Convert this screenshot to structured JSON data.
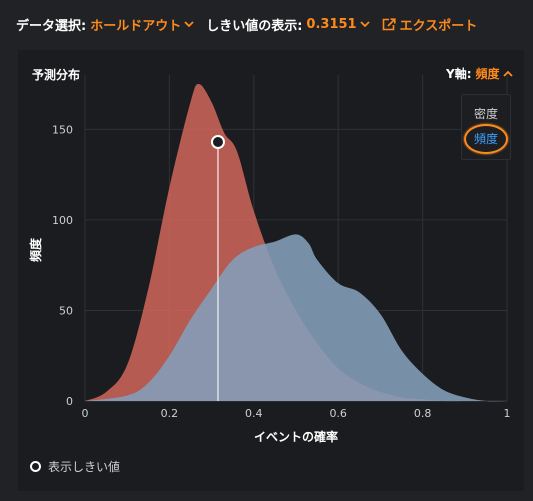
{
  "toolbar": {
    "data_selection_label": "データ選択:",
    "data_selection_value": "ホールドアウト",
    "threshold_label": "しきい値の表示:",
    "threshold_value": "0.3151",
    "export_label": "エクスポート"
  },
  "panel": {
    "title": "予測分布",
    "yaxis_label": "Y軸:",
    "yaxis_value": "頻度",
    "dropdown_options": [
      "密度",
      "頻度"
    ],
    "selected_option": "頻度"
  },
  "legend": {
    "threshold_label": "表示しきい値"
  },
  "colors": {
    "accent": "#ff8a1c",
    "selected": "#3fa0ff",
    "negative_class": "#d2665c",
    "positive_class": "#9aa8c2",
    "positive_edge": "#5e8eaa"
  },
  "chart_data": {
    "type": "area",
    "title": "",
    "xlabel": "イベントの確率",
    "ylabel": "頻度",
    "xlim": [
      0,
      1
    ],
    "ylim": [
      0,
      180
    ],
    "x_ticks": [
      "0",
      "0.2",
      "0.4",
      "0.6",
      "0.8",
      "1"
    ],
    "x_tick_values": [
      0,
      0.2,
      0.4,
      0.6,
      0.8,
      1
    ],
    "y_ticks": [
      "0",
      "50",
      "100",
      "150"
    ],
    "y_tick_values": [
      0,
      50,
      100,
      150
    ],
    "grid": true,
    "threshold": {
      "x": 0.3151,
      "y": 143
    },
    "series": [
      {
        "x": [
          0,
          0.05,
          0.1,
          0.15,
          0.2,
          0.25,
          0.27,
          0.3,
          0.33,
          0.36,
          0.4,
          0.45,
          0.5,
          0.55,
          0.6,
          0.65,
          0.7,
          0.75,
          0.8,
          0.85,
          0.9
        ],
        "y": [
          0,
          5,
          20,
          62,
          118,
          165,
          175,
          165,
          148,
          138,
          105,
          73,
          50,
          32,
          18,
          10,
          5,
          2,
          1,
          0,
          0
        ]
      },
      {
        "x": [
          0,
          0.1,
          0.15,
          0.2,
          0.25,
          0.3,
          0.35,
          0.4,
          0.45,
          0.5,
          0.53,
          0.55,
          0.6,
          0.65,
          0.7,
          0.75,
          0.8,
          0.85,
          0.9,
          0.95,
          1
        ],
        "y": [
          0,
          3,
          10,
          25,
          45,
          62,
          78,
          85,
          88,
          92,
          87,
          78,
          65,
          60,
          48,
          28,
          15,
          6,
          2,
          0,
          0
        ]
      }
    ]
  }
}
